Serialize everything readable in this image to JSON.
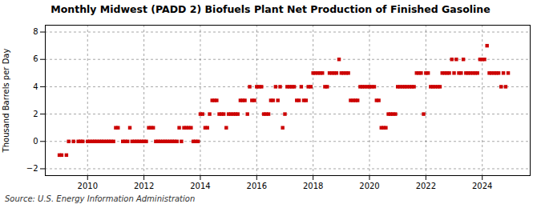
{
  "chart_data": {
    "type": "scatter",
    "title": "Monthly Midwest (PADD 2) Biofuels Plant Net Production of Finished Gasoline",
    "ylabel": "Thousand Barrels per Day",
    "source": "Source: U.S. Energy Information Administration",
    "color": "#cc0000",
    "marker": "square",
    "grid": true,
    "xlim": [
      2008.5,
      2025.7
    ],
    "xticks": [
      2010,
      2012,
      2014,
      2016,
      2018,
      2020,
      2022,
      2024
    ],
    "ylim": [
      -2.5,
      8.5
    ],
    "yticks": [
      -2,
      0,
      2,
      4,
      6,
      8
    ],
    "x": [
      2009.0,
      2009.08,
      2009.25,
      2009.33,
      2009.5,
      2009.67,
      2009.75,
      2009.83,
      2010.0,
      2010.08,
      2010.17,
      2010.25,
      2010.33,
      2010.42,
      2010.5,
      2010.58,
      2010.67,
      2010.75,
      2010.83,
      2010.92,
      2011.0,
      2011.08,
      2011.25,
      2011.33,
      2011.42,
      2011.5,
      2011.58,
      2011.67,
      2011.75,
      2011.83,
      2011.92,
      2012.0,
      2012.08,
      2012.17,
      2012.25,
      2012.33,
      2012.42,
      2012.5,
      2012.58,
      2012.67,
      2012.75,
      2012.83,
      2012.92,
      2013.0,
      2013.08,
      2013.17,
      2013.25,
      2013.33,
      2013.42,
      2013.5,
      2013.58,
      2013.67,
      2013.75,
      2013.83,
      2013.92,
      2014.0,
      2014.08,
      2014.17,
      2014.25,
      2014.33,
      2014.42,
      2014.5,
      2014.58,
      2014.67,
      2014.75,
      2014.83,
      2014.92,
      2015.0,
      2015.08,
      2015.17,
      2015.25,
      2015.33,
      2015.42,
      2015.5,
      2015.58,
      2015.67,
      2015.75,
      2015.83,
      2015.92,
      2016.0,
      2016.08,
      2016.17,
      2016.25,
      2016.33,
      2016.42,
      2016.5,
      2016.58,
      2016.67,
      2016.75,
      2016.83,
      2016.92,
      2017.0,
      2017.08,
      2017.17,
      2017.25,
      2017.33,
      2017.42,
      2017.5,
      2017.58,
      2017.67,
      2017.75,
      2017.83,
      2017.92,
      2018.0,
      2018.08,
      2018.17,
      2018.25,
      2018.33,
      2018.42,
      2018.5,
      2018.58,
      2018.67,
      2018.75,
      2018.83,
      2018.92,
      2019.0,
      2019.08,
      2019.17,
      2019.25,
      2019.33,
      2019.42,
      2019.5,
      2019.58,
      2019.67,
      2019.75,
      2019.83,
      2019.92,
      2020.0,
      2020.08,
      2020.17,
      2020.25,
      2020.33,
      2020.42,
      2020.5,
      2020.58,
      2020.67,
      2020.75,
      2020.83,
      2020.92,
      2021.0,
      2021.08,
      2021.17,
      2021.25,
      2021.33,
      2021.42,
      2021.5,
      2021.58,
      2021.67,
      2021.75,
      2021.83,
      2021.92,
      2022.0,
      2022.08,
      2022.17,
      2022.25,
      2022.33,
      2022.42,
      2022.5,
      2022.58,
      2022.67,
      2022.75,
      2022.83,
      2022.92,
      2023.0,
      2023.08,
      2023.17,
      2023.25,
      2023.33,
      2023.42,
      2023.5,
      2023.58,
      2023.67,
      2023.75,
      2023.83,
      2023.92,
      2024.0,
      2024.08,
      2024.17,
      2024.25,
      2024.33,
      2024.42,
      2024.5,
      2024.58,
      2024.67,
      2024.75,
      2024.83,
      2024.92
    ],
    "values": [
      -1,
      -1,
      -1,
      0,
      0,
      0,
      0,
      0,
      0,
      0,
      0,
      0,
      0,
      0,
      0,
      0,
      0,
      0,
      0,
      0,
      1,
      1,
      0,
      0,
      0,
      1,
      0,
      0,
      0,
      0,
      0,
      0,
      0,
      1,
      1,
      1,
      0,
      0,
      0,
      0,
      0,
      0,
      0,
      0,
      0,
      0,
      1,
      0,
      1,
      1,
      1,
      1,
      0,
      0,
      0,
      2,
      2,
      1,
      1,
      2,
      3,
      3,
      3,
      2,
      2,
      2,
      1,
      2,
      2,
      2,
      2,
      2,
      3,
      3,
      3,
      2,
      4,
      3,
      3,
      4,
      4,
      4,
      2,
      2,
      2,
      3,
      3,
      4,
      3,
      4,
      1,
      2,
      4,
      4,
      4,
      4,
      3,
      3,
      4,
      3,
      3,
      4,
      4,
      5,
      5,
      5,
      5,
      5,
      4,
      4,
      5,
      5,
      5,
      5,
      6,
      5,
      5,
      5,
      5,
      3,
      3,
      3,
      3,
      4,
      4,
      4,
      4,
      4,
      4,
      4,
      3,
      3,
      1,
      1,
      1,
      2,
      2,
      2,
      2,
      4,
      4,
      4,
      4,
      4,
      4,
      4,
      4,
      5,
      5,
      5,
      2,
      5,
      5,
      4,
      4,
      4,
      4,
      4,
      5,
      5,
      5,
      5,
      6,
      5,
      6,
      5,
      5,
      6,
      5,
      5,
      5,
      5,
      5,
      5,
      6,
      6,
      6,
      7,
      5,
      5,
      5,
      5,
      5,
      4,
      5,
      4,
      5
    ]
  }
}
